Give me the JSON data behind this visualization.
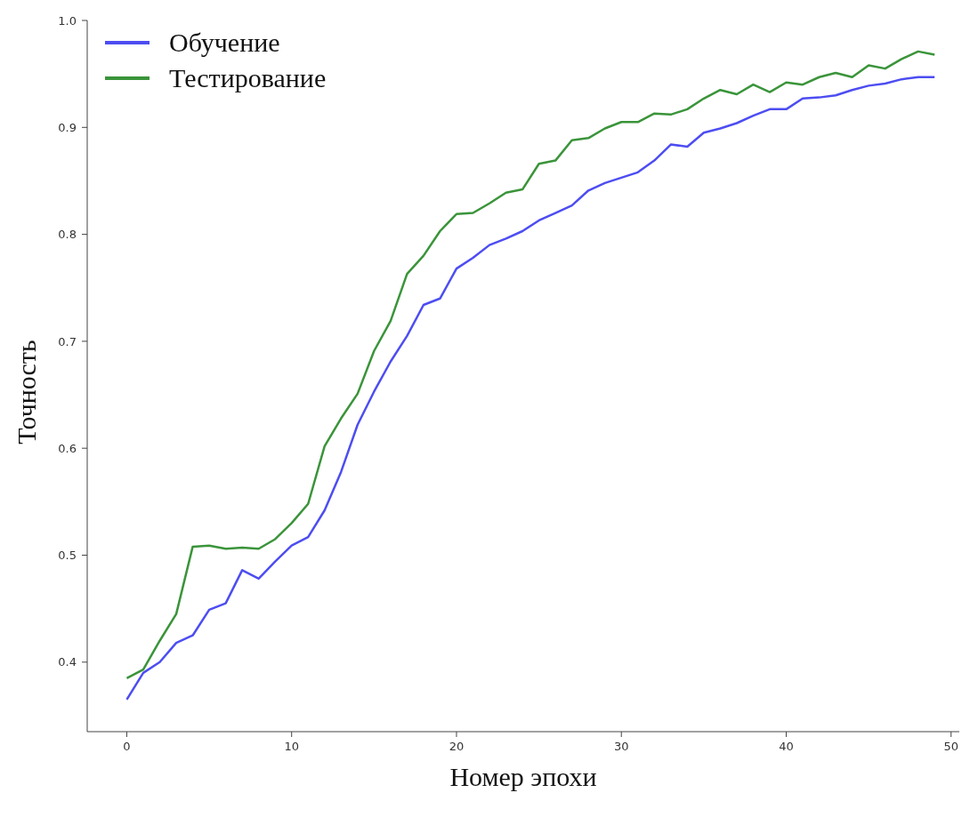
{
  "chart_data": {
    "type": "line",
    "xlabel": "Номер эпохи",
    "ylabel": "Точность",
    "x": [
      0,
      1,
      2,
      3,
      4,
      5,
      6,
      7,
      8,
      9,
      10,
      11,
      12,
      13,
      14,
      15,
      16,
      17,
      18,
      19,
      20,
      21,
      22,
      23,
      24,
      25,
      26,
      27,
      28,
      29,
      30,
      31,
      32,
      33,
      34,
      35,
      36,
      37,
      38,
      39,
      40,
      41,
      42,
      43,
      44,
      45,
      46,
      47,
      48,
      49
    ],
    "series": [
      {
        "name": "Обучение",
        "color": "#4d4df2",
        "values": [
          0.365,
          0.39,
          0.4,
          0.418,
          0.425,
          0.449,
          0.455,
          0.486,
          0.478,
          0.494,
          0.509,
          0.517,
          0.542,
          0.578,
          0.622,
          0.653,
          0.681,
          0.705,
          0.734,
          0.74,
          0.768,
          0.778,
          0.79,
          0.796,
          0.803,
          0.813,
          0.82,
          0.827,
          0.841,
          0.848,
          0.853,
          0.858,
          0.869,
          0.884,
          0.882,
          0.895,
          0.899,
          0.904,
          0.911,
          0.917,
          0.917,
          0.927,
          0.928,
          0.93,
          0.935,
          0.939,
          0.941,
          0.945,
          0.947,
          0.947
        ]
      },
      {
        "name": "Тестирование",
        "color": "#3a943a",
        "values": [
          0.385,
          0.393,
          0.42,
          0.445,
          0.508,
          0.509,
          0.506,
          0.507,
          0.506,
          0.515,
          0.53,
          0.548,
          0.602,
          0.628,
          0.651,
          0.691,
          0.719,
          0.763,
          0.78,
          0.803,
          0.819,
          0.82,
          0.829,
          0.839,
          0.842,
          0.866,
          0.869,
          0.888,
          0.89,
          0.899,
          0.905,
          0.905,
          0.913,
          0.912,
          0.917,
          0.927,
          0.935,
          0.931,
          0.94,
          0.933,
          0.942,
          0.94,
          0.947,
          0.951,
          0.947,
          0.958,
          0.955,
          0.964,
          0.971,
          0.968
        ]
      }
    ],
    "xlim": [
      -2.4,
      50.5
    ],
    "xticks": [
      0,
      10,
      20,
      30,
      40,
      50
    ],
    "ylim": [
      0.335,
      1.0
    ],
    "yticks": [
      0.4,
      0.5,
      0.6,
      0.7,
      0.8,
      0.9,
      {
        "value": 1.0,
        "label": "1.0"
      }
    ],
    "legend": "top left",
    "line_style": "solid",
    "marker": "none"
  }
}
